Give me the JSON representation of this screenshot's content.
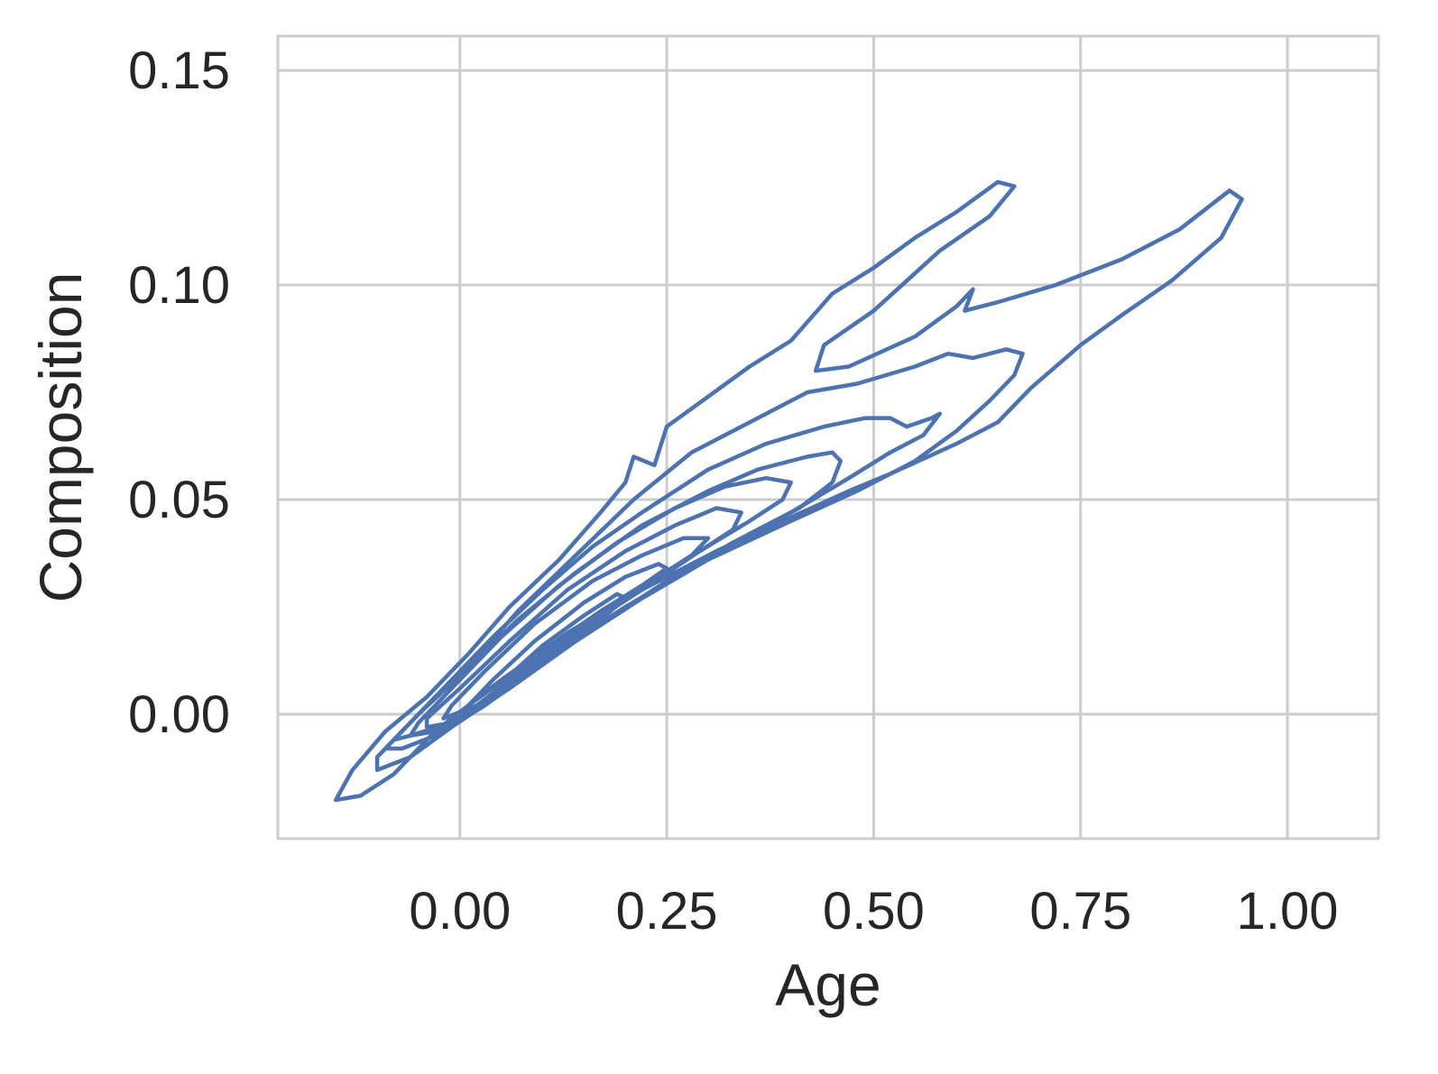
{
  "chart_data": {
    "type": "contour",
    "title": "",
    "xlabel": "Age",
    "ylabel": "Composition",
    "xlim": [
      -0.22,
      1.11
    ],
    "ylim": [
      -0.029,
      0.158
    ],
    "x_ticks": [
      "0.00",
      "0.25",
      "0.50",
      "0.75",
      "1.00"
    ],
    "x_tick_values": [
      0.0,
      0.25,
      0.5,
      0.75,
      1.0
    ],
    "y_ticks": [
      "0.00",
      "0.05",
      "0.10",
      "0.15"
    ],
    "y_tick_values": [
      0.0,
      0.05,
      0.1,
      0.15
    ],
    "grid": true,
    "line_color": "#4c72b0",
    "contours": [
      {
        "level": 1,
        "points": [
          [
            -0.15,
            -0.02
          ],
          [
            -0.13,
            -0.013
          ],
          [
            -0.09,
            -0.004
          ],
          [
            -0.04,
            0.004
          ],
          [
            0.01,
            0.014
          ],
          [
            0.06,
            0.025
          ],
          [
            0.12,
            0.036
          ],
          [
            0.17,
            0.047
          ],
          [
            0.2,
            0.054
          ],
          [
            0.21,
            0.06
          ],
          [
            0.235,
            0.058
          ],
          [
            0.25,
            0.067
          ],
          [
            0.3,
            0.074
          ],
          [
            0.35,
            0.081
          ],
          [
            0.4,
            0.087
          ],
          [
            0.45,
            0.098
          ],
          [
            0.5,
            0.104
          ],
          [
            0.55,
            0.111
          ],
          [
            0.6,
            0.117
          ],
          [
            0.65,
            0.124
          ],
          [
            0.67,
            0.123
          ],
          [
            0.64,
            0.116
          ],
          [
            0.58,
            0.108
          ],
          [
            0.5,
            0.094
          ],
          [
            0.44,
            0.086
          ],
          [
            0.43,
            0.08
          ],
          [
            0.47,
            0.081
          ],
          [
            0.55,
            0.088
          ],
          [
            0.6,
            0.095
          ],
          [
            0.62,
            0.099
          ],
          [
            0.61,
            0.094
          ],
          [
            0.65,
            0.096
          ],
          [
            0.72,
            0.1
          ],
          [
            0.8,
            0.106
          ],
          [
            0.87,
            0.113
          ],
          [
            0.93,
            0.122
          ],
          [
            0.945,
            0.12
          ],
          [
            0.92,
            0.111
          ],
          [
            0.86,
            0.101
          ],
          [
            0.8,
            0.093
          ],
          [
            0.75,
            0.086
          ],
          [
            0.69,
            0.076
          ],
          [
            0.65,
            0.068
          ],
          [
            0.6,
            0.063
          ],
          [
            0.52,
            0.056
          ],
          [
            0.47,
            0.052
          ],
          [
            0.39,
            0.045
          ],
          [
            0.31,
            0.038
          ],
          [
            0.22,
            0.029
          ],
          [
            0.13,
            0.019
          ],
          [
            0.05,
            0.008
          ],
          [
            -0.03,
            -0.004
          ],
          [
            -0.08,
            -0.014
          ],
          [
            -0.12,
            -0.019
          ],
          [
            -0.15,
            -0.02
          ]
        ]
      },
      {
        "level": 2,
        "points": [
          [
            -0.1,
            -0.013
          ],
          [
            -0.1,
            -0.01
          ],
          [
            -0.07,
            -0.004
          ],
          [
            -0.03,
            0.004
          ],
          [
            0.02,
            0.013
          ],
          [
            0.07,
            0.024
          ],
          [
            0.14,
            0.037
          ],
          [
            0.21,
            0.05
          ],
          [
            0.28,
            0.061
          ],
          [
            0.36,
            0.069
          ],
          [
            0.42,
            0.075
          ],
          [
            0.48,
            0.077
          ],
          [
            0.55,
            0.081
          ],
          [
            0.59,
            0.084
          ],
          [
            0.62,
            0.083
          ],
          [
            0.66,
            0.085
          ],
          [
            0.68,
            0.084
          ],
          [
            0.67,
            0.079
          ],
          [
            0.64,
            0.073
          ],
          [
            0.6,
            0.066
          ],
          [
            0.55,
            0.059
          ],
          [
            0.48,
            0.052
          ],
          [
            0.4,
            0.045
          ],
          [
            0.3,
            0.036
          ],
          [
            0.22,
            0.027
          ],
          [
            0.14,
            0.017
          ],
          [
            0.06,
            0.006
          ],
          [
            -0.01,
            -0.003
          ],
          [
            -0.06,
            -0.01
          ],
          [
            -0.1,
            -0.013
          ]
        ]
      },
      {
        "level": 3,
        "points": [
          [
            -0.09,
            -0.008
          ],
          [
            -0.06,
            -0.002
          ],
          [
            -0.02,
            0.006
          ],
          [
            0.04,
            0.018
          ],
          [
            0.1,
            0.029
          ],
          [
            0.16,
            0.039
          ],
          [
            0.22,
            0.047
          ],
          [
            0.3,
            0.057
          ],
          [
            0.37,
            0.063
          ],
          [
            0.44,
            0.067
          ],
          [
            0.49,
            0.069
          ],
          [
            0.52,
            0.069
          ],
          [
            0.54,
            0.067
          ],
          [
            0.57,
            0.069
          ],
          [
            0.58,
            0.07
          ],
          [
            0.56,
            0.065
          ],
          [
            0.52,
            0.061
          ],
          [
            0.47,
            0.055
          ],
          [
            0.4,
            0.047
          ],
          [
            0.33,
            0.04
          ],
          [
            0.25,
            0.031
          ],
          [
            0.17,
            0.021
          ],
          [
            0.1,
            0.012
          ],
          [
            0.03,
            0.002
          ],
          [
            -0.03,
            -0.005
          ],
          [
            -0.07,
            -0.008
          ],
          [
            -0.09,
            -0.008
          ]
        ]
      },
      {
        "level": 4,
        "points": [
          [
            -0.08,
            -0.006
          ],
          [
            -0.05,
            0.0
          ],
          [
            0.0,
            0.009
          ],
          [
            0.07,
            0.022
          ],
          [
            0.14,
            0.033
          ],
          [
            0.22,
            0.044
          ],
          [
            0.3,
            0.052
          ],
          [
            0.36,
            0.057
          ],
          [
            0.42,
            0.06
          ],
          [
            0.45,
            0.061
          ],
          [
            0.46,
            0.059
          ],
          [
            0.45,
            0.054
          ],
          [
            0.41,
            0.048
          ],
          [
            0.35,
            0.042
          ],
          [
            0.28,
            0.034
          ],
          [
            0.2,
            0.025
          ],
          [
            0.12,
            0.015
          ],
          [
            0.05,
            0.006
          ],
          [
            -0.01,
            -0.002
          ],
          [
            -0.06,
            -0.005
          ],
          [
            -0.08,
            -0.006
          ]
        ]
      },
      {
        "level": 5,
        "points": [
          [
            -0.06,
            -0.005
          ],
          [
            -0.05,
            -0.002
          ],
          [
            -0.01,
            0.006
          ],
          [
            0.05,
            0.018
          ],
          [
            0.12,
            0.03
          ],
          [
            0.19,
            0.04
          ],
          [
            0.26,
            0.048
          ],
          [
            0.32,
            0.053
          ],
          [
            0.37,
            0.055
          ],
          [
            0.4,
            0.054
          ],
          [
            0.39,
            0.05
          ],
          [
            0.35,
            0.045
          ],
          [
            0.29,
            0.038
          ],
          [
            0.22,
            0.029
          ],
          [
            0.14,
            0.019
          ],
          [
            0.07,
            0.009
          ],
          [
            0.01,
            0.0
          ],
          [
            -0.03,
            -0.004
          ],
          [
            -0.06,
            -0.005
          ]
        ]
      },
      {
        "level": 6,
        "points": [
          [
            -0.04,
            -0.003
          ],
          [
            -0.04,
            -0.001
          ],
          [
            0.0,
            0.006
          ],
          [
            0.06,
            0.017
          ],
          [
            0.13,
            0.029
          ],
          [
            0.2,
            0.038
          ],
          [
            0.26,
            0.044
          ],
          [
            0.31,
            0.048
          ],
          [
            0.34,
            0.047
          ],
          [
            0.33,
            0.043
          ],
          [
            0.29,
            0.038
          ],
          [
            0.23,
            0.031
          ],
          [
            0.16,
            0.022
          ],
          [
            0.09,
            0.012
          ],
          [
            0.03,
            0.003
          ],
          [
            -0.01,
            -0.002
          ],
          [
            -0.04,
            -0.003
          ]
        ]
      },
      {
        "level": 7,
        "points": [
          [
            -0.02,
            -0.001
          ],
          [
            -0.01,
            0.002
          ],
          [
            0.03,
            0.01
          ],
          [
            0.09,
            0.021
          ],
          [
            0.16,
            0.031
          ],
          [
            0.22,
            0.037
          ],
          [
            0.27,
            0.041
          ],
          [
            0.3,
            0.041
          ],
          [
            0.28,
            0.037
          ],
          [
            0.24,
            0.032
          ],
          [
            0.18,
            0.025
          ],
          [
            0.12,
            0.017
          ],
          [
            0.06,
            0.008
          ],
          [
            0.02,
            0.002
          ],
          [
            -0.02,
            -0.001
          ]
        ]
      },
      {
        "level": 8,
        "points": [
          [
            0.01,
            0.002
          ],
          [
            0.04,
            0.008
          ],
          [
            0.09,
            0.017
          ],
          [
            0.15,
            0.026
          ],
          [
            0.2,
            0.032
          ],
          [
            0.24,
            0.035
          ],
          [
            0.25,
            0.034
          ],
          [
            0.22,
            0.03
          ],
          [
            0.17,
            0.024
          ],
          [
            0.11,
            0.016
          ],
          [
            0.06,
            0.009
          ],
          [
            0.01,
            0.002
          ]
        ]
      },
      {
        "level": 9,
        "points": [
          [
            0.06,
            0.009
          ],
          [
            0.1,
            0.016
          ],
          [
            0.15,
            0.023
          ],
          [
            0.19,
            0.028
          ],
          [
            0.2,
            0.027
          ],
          [
            0.17,
            0.022
          ],
          [
            0.12,
            0.016
          ],
          [
            0.06,
            0.009
          ]
        ]
      }
    ]
  }
}
